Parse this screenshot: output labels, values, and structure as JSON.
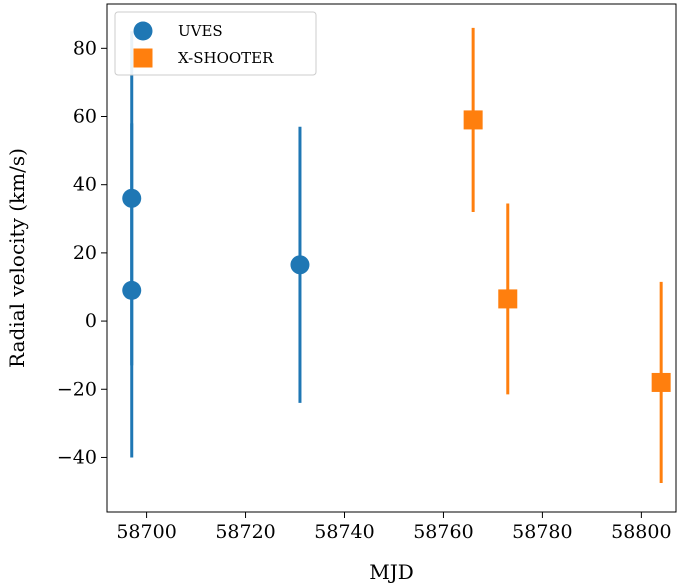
{
  "chart_data": {
    "type": "scatter",
    "xlabel": "MJD",
    "ylabel": "Radial velocity (km/s)",
    "xlim": [
      58692,
      58807
    ],
    "ylim": [
      -56,
      93
    ],
    "x_ticks": [
      58700,
      58720,
      58740,
      58760,
      58780,
      58800
    ],
    "y_ticks": [
      -40,
      -20,
      0,
      20,
      40,
      60,
      80
    ],
    "y_tick_labels": [
      "−40",
      "−20",
      "0",
      "20",
      "40",
      "60",
      "80"
    ],
    "grid": false,
    "legend_position": "top-left",
    "series": [
      {
        "name": "UVES",
        "marker": "circle",
        "color": "#1f77b4",
        "points": [
          {
            "x": 58697,
            "y": 36,
            "yerr": 49
          },
          {
            "x": 58697,
            "y": 9,
            "yerr": 49
          },
          {
            "x": 58731,
            "y": 16.5,
            "yerr": 40.5
          }
        ]
      },
      {
        "name": "X-SHOOTER",
        "marker": "square",
        "color": "#ff7f0e",
        "points": [
          {
            "x": 58766,
            "y": 59,
            "yerr": 27
          },
          {
            "x": 58773,
            "y": 6.5,
            "yerr": 28
          },
          {
            "x": 58804,
            "y": -18,
            "yerr": 29.5
          }
        ]
      }
    ]
  }
}
